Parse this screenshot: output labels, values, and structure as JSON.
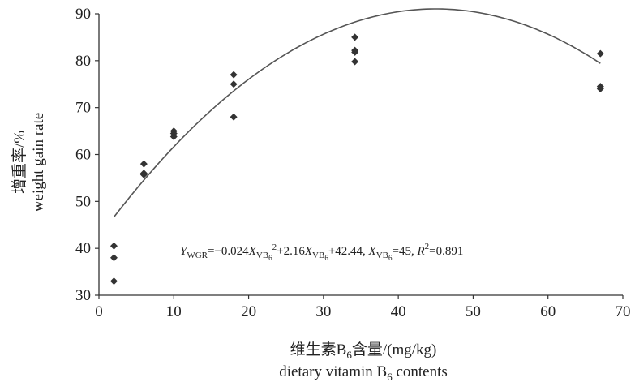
{
  "chart_data": {
    "type": "scatter",
    "title": "",
    "xlabel_cn": "维生素B",
    "xlabel_cn_sub": "6",
    "xlabel_cn_tail": "含量/(mg/kg)",
    "xlabel_en": "dietary vitamin B",
    "xlabel_en_sub": "6",
    "xlabel_en_tail": " contents",
    "ylabel_cn": "增重率/%",
    "ylabel_en": "weight gain rate",
    "xlim": [
      0,
      70
    ],
    "ylim": [
      30,
      90
    ],
    "xticks": [
      0,
      10,
      20,
      30,
      40,
      50,
      60,
      70
    ],
    "yticks": [
      30,
      40,
      50,
      60,
      70,
      80,
      90
    ],
    "grid": false,
    "series": [
      {
        "points": [
          [
            2,
            40.5
          ],
          [
            2,
            38
          ],
          [
            2,
            33
          ],
          [
            6,
            58
          ],
          [
            6,
            56
          ],
          [
            6,
            55.7
          ],
          [
            10,
            65
          ],
          [
            10,
            64.5
          ],
          [
            10,
            63.8
          ],
          [
            18,
            77
          ],
          [
            18,
            75
          ],
          [
            18,
            68
          ],
          [
            34.2,
            85
          ],
          [
            34.2,
            82.2
          ],
          [
            34.2,
            81.8
          ],
          [
            34.2,
            79.8
          ],
          [
            67,
            81.5
          ],
          [
            67,
            74.5
          ],
          [
            67,
            74
          ]
        ]
      }
    ],
    "fit_curve": {
      "a": -0.024,
      "b": 2.16,
      "c": 42.44,
      "x_range": [
        2,
        67
      ]
    },
    "equation": {
      "y": "Y",
      "y_sub": "WGR",
      "part1": "=−0.024",
      "x": "X",
      "x_sub": "VB",
      "x_subsub": "6",
      "sup2": "2",
      "part2": "+2.16",
      "part3": "+42.44, ",
      "part4": "=45, ",
      "r": "R",
      "r_sup": "2",
      "part5": "=0.891"
    }
  }
}
